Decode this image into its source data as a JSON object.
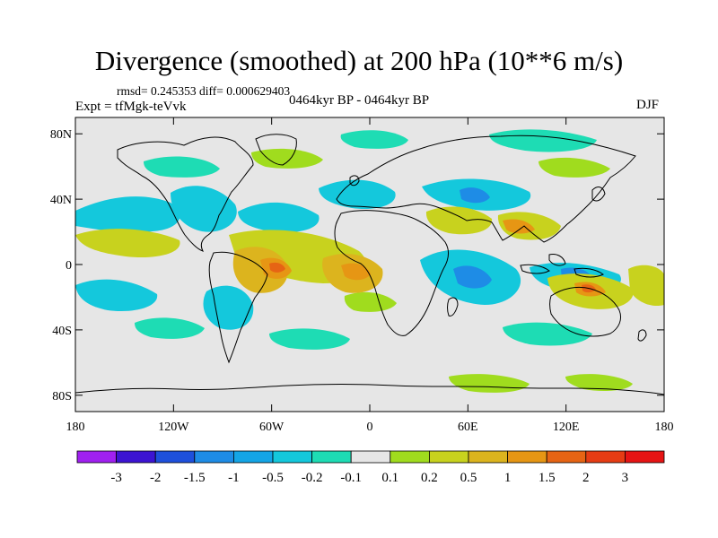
{
  "title": "Divergence (smoothed) at 200 hPa (10**6 m/s)",
  "stats": "rmsd= 0.245353 diff= 0.000629403",
  "experiment": "Expt = tfMgk-teVvk",
  "period": "0464kyr BP - 0464kyr BP",
  "season": "DJF",
  "map": {
    "projection": "cylindrical equidistant",
    "lon_range": [
      -180,
      180
    ],
    "lat_range": [
      -90,
      90
    ],
    "background_color": "#e6e6e6",
    "x_ticks": [
      {
        "value": -180,
        "label": "180"
      },
      {
        "value": -120,
        "label": "120W"
      },
      {
        "value": -60,
        "label": "60W"
      },
      {
        "value": 0,
        "label": "0"
      },
      {
        "value": 60,
        "label": "60E"
      },
      {
        "value": 120,
        "label": "120E"
      },
      {
        "value": 180,
        "label": "180"
      }
    ],
    "y_ticks": [
      {
        "value": 80,
        "label": "80N"
      },
      {
        "value": 40,
        "label": "40N"
      },
      {
        "value": 0,
        "label": "0"
      },
      {
        "value": -40,
        "label": "40S"
      },
      {
        "value": -80,
        "label": "80S"
      }
    ]
  },
  "colorbar": {
    "colors": [
      "#a020f0",
      "#3c14d2",
      "#1e50dc",
      "#1e8ce6",
      "#14a5e6",
      "#14c8dc",
      "#1edcb4",
      "#e6e6e6",
      "#a0dc1e",
      "#c8d21e",
      "#dcb41e",
      "#e69614",
      "#e66414",
      "#e63c14",
      "#e61414"
    ],
    "labels": [
      "-3",
      "-2",
      "-1.5",
      "-1",
      "-0.5",
      "-0.2",
      "-0.1",
      "0.1",
      "0.2",
      "0.5",
      "1",
      "1.5",
      "2",
      "3"
    ]
  }
}
